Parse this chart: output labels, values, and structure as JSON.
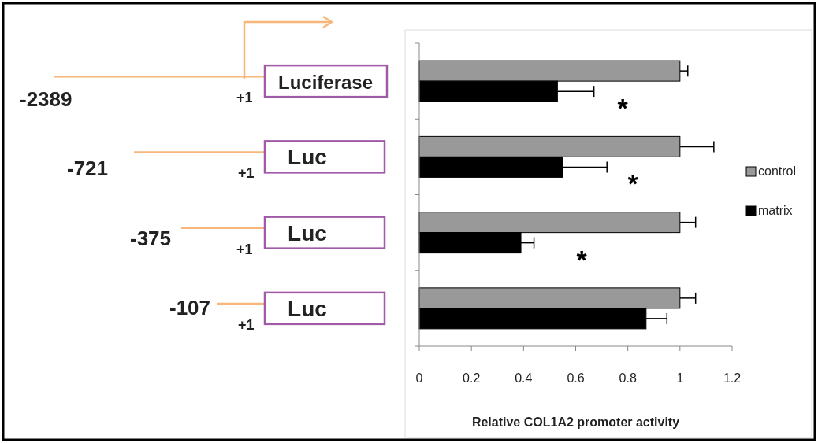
{
  "chart_data": {
    "type": "bar",
    "orientation": "horizontal",
    "categories": [
      null,
      null,
      null,
      null
    ],
    "series": [
      {
        "name": "control",
        "color": "#999999",
        "values": [
          1,
          1,
          1,
          1
        ],
        "errors": [
          [
            1,
            1.03
          ],
          [
            1,
            1.13
          ],
          [
            1,
            1.06
          ],
          [
            1,
            1.06
          ]
        ]
      },
      {
        "name": "matrix",
        "color": "#000000",
        "values": [
          0.53,
          0.55,
          0.39,
          0.87
        ],
        "errors": [
          [
            0.53,
            0.67
          ],
          [
            0.55,
            0.72
          ],
          [
            0.39,
            0.44
          ],
          [
            0.87,
            0.95
          ]
        ]
      }
    ],
    "xlim": [
      0,
      1.2
    ],
    "xticks": [
      0,
      0.2,
      0.4,
      0.6,
      0.8,
      1,
      1.2
    ],
    "xlabel": "Relative COL1A2 promoter activity",
    "legend": "right",
    "annotations": [
      "Luciferase",
      "Luc",
      "Luc",
      "Luc",
      "+1",
      "+1",
      "+1",
      "+1",
      "-2389",
      "-721",
      "-375",
      "-107",
      "*",
      "*",
      "*"
    ]
  }
}
